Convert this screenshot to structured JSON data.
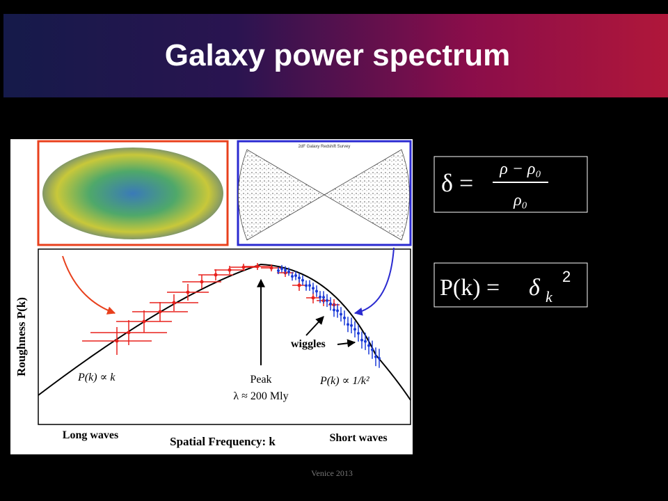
{
  "header": {
    "title": "Galaxy power spectrum"
  },
  "figure": {
    "survey_title": "2dF Galaxy Redshift Survey",
    "y_label": "Roughness P(k)",
    "x_label": "Spatial Frequency: k",
    "left_label": "Long waves",
    "right_label": "Short waves",
    "peak_label": "Peak",
    "peak_scale": "λ ≈ 200 Mly",
    "left_law": "P(k) ∝ k",
    "right_law": "P(k) ∝ 1/k²",
    "wiggles_label": "wiggles"
  },
  "formulas": {
    "contrast": {
      "lhs": "δ =",
      "numerator": "ρ − ρ₀",
      "denominator": "ρ₀"
    },
    "spectrum": {
      "lhs": "P(k) =",
      "symbol": "δ",
      "subscript": "k",
      "exponent": "2"
    }
  },
  "footer": {
    "text": "Venice 2013"
  }
}
